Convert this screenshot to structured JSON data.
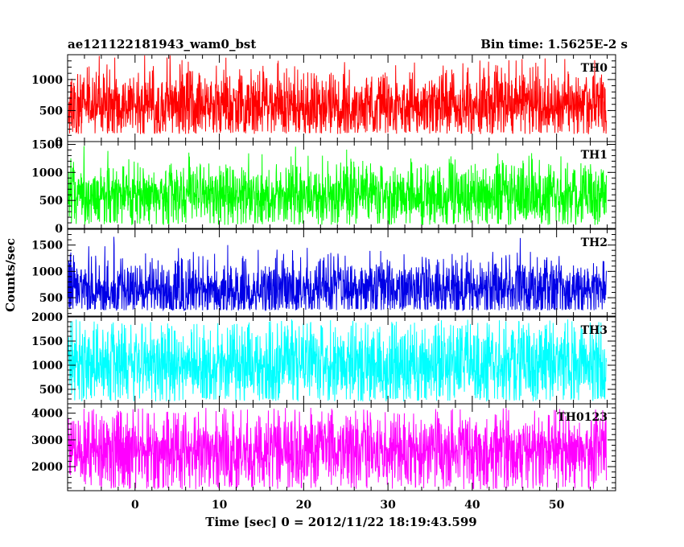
{
  "chart_data": {
    "type": "line",
    "title": "ae121122181943_wam0_bst",
    "subtitle": "Bin time: 1.5625E-2 s",
    "xlabel": "Time [sec] 0 = 2012/11/22 18:19:43.599",
    "ylabel": "Counts/sec",
    "xlim": [
      -8,
      57
    ],
    "x_ticks": [
      0,
      10,
      20,
      30,
      40,
      50
    ],
    "x_range_of_data": [
      -7.9,
      55.9
    ],
    "grid": false,
    "panels": [
      {
        "name": "TH0",
        "color": "#ff0000",
        "ylim": [
          0,
          1400
        ],
        "y_ticks": [
          0,
          500,
          1000
        ],
        "values_summary": {
          "min": 120,
          "typical_low": 300,
          "mean": 600,
          "typical_high": 950,
          "max": 1400
        }
      },
      {
        "name": "TH1",
        "color": "#00ff00",
        "ylim": [
          0,
          1550
        ],
        "y_ticks": [
          0,
          500,
          1000,
          1500
        ],
        "values_summary": {
          "min": 60,
          "typical_low": 250,
          "mean": 580,
          "typical_high": 900,
          "max": 1480
        }
      },
      {
        "name": "TH2",
        "color": "#0000e6",
        "ylim": [
          150,
          1800
        ],
        "y_ticks": [
          500,
          1000,
          1500
        ],
        "values_summary": {
          "min": 260,
          "typical_low": 380,
          "mean": 650,
          "typical_high": 1050,
          "max": 1750
        }
      },
      {
        "name": "TH3",
        "color": "#00ffff",
        "ylim": [
          200,
          2000
        ],
        "y_ticks": [
          500,
          1000,
          1500,
          2000
        ],
        "values_summary": {
          "min": 250,
          "typical_low": 500,
          "mean": 1000,
          "typical_high": 1500,
          "max": 1950
        }
      },
      {
        "name": "TH0123",
        "color": "#ff00ff",
        "ylim": [
          1100,
          4350
        ],
        "y_ticks": [
          2000,
          3000,
          4000
        ],
        "values_summary": {
          "min": 1150,
          "typical_low": 1700,
          "mean": 2550,
          "typical_high": 3400,
          "max": 4200
        }
      }
    ]
  }
}
